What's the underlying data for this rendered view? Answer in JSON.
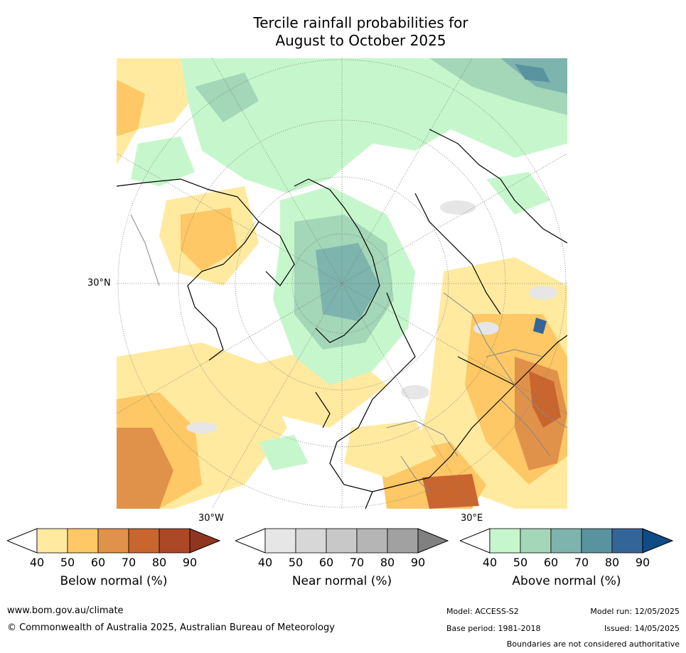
{
  "title_line1": "Tercile rainfall probabilities for",
  "title_line2": "August to October 2025",
  "map": {
    "projection": "north-polar",
    "labels": {
      "lat30": "30°N",
      "lon30w": "30°W",
      "lon30e": "30°E"
    }
  },
  "colorbars": [
    {
      "label": "Below normal (%)",
      "ticks": [
        "40",
        "50",
        "60",
        "70",
        "80",
        "90"
      ],
      "colors": [
        "#ffffff",
        "#ffeaa0",
        "#fdc865",
        "#e1924a",
        "#c9652e",
        "#ad4826",
        "#8f3620"
      ]
    },
    {
      "label": "Near normal (%)",
      "ticks": [
        "40",
        "50",
        "60",
        "70",
        "80",
        "90"
      ],
      "colors": [
        "#ffffff",
        "#e6e6e6",
        "#d7d7d7",
        "#c8c8c8",
        "#b5b5b5",
        "#a1a1a1",
        "#808080"
      ]
    },
    {
      "label": "Above normal (%)",
      "ticks": [
        "40",
        "50",
        "60",
        "70",
        "80",
        "90"
      ],
      "colors": [
        "#ffffff",
        "#c6f7cc",
        "#a4d6b8",
        "#7db4ad",
        "#5a93a0",
        "#336598",
        "#0f4b85"
      ]
    }
  ],
  "footer": {
    "url": "www.bom.gov.au/climate",
    "copyright": "© Commonwealth of Australia 2025, Australian Bureau of Meteorology",
    "model": "Model: ACCESS-S2",
    "model_run": "Model run: 12/05/2025",
    "base_period": "Base period: 1981-2018",
    "issued": "Issued: 14/05/2025",
    "disclaimer": "Boundaries are not considered authoritative"
  }
}
